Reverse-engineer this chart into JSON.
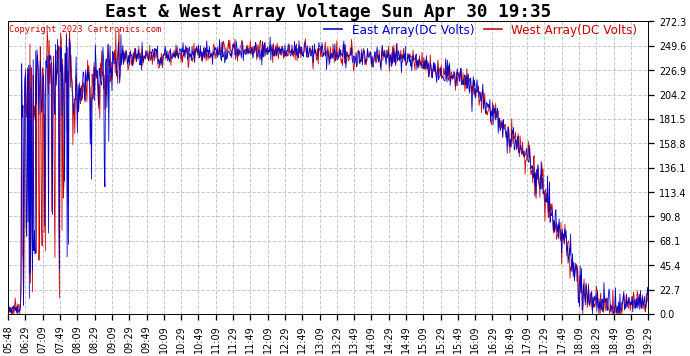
{
  "title": "East & West Array Voltage Sun Apr 30 19:35",
  "copyright": "Copyright 2023 Cartronics.com",
  "legend_east": "East Array(DC Volts)",
  "legend_west": "West Array(DC Volts)",
  "east_color": "#0000cc",
  "west_color": "#cc0000",
  "ylabel_values": [
    272.3,
    249.6,
    226.9,
    204.2,
    181.5,
    158.8,
    136.1,
    113.4,
    90.8,
    68.1,
    45.4,
    22.7,
    0.0
  ],
  "ymin": 0.0,
  "ymax": 272.3,
  "x_tick_labels": [
    "05:48",
    "06:29",
    "07:09",
    "07:49",
    "08:09",
    "08:29",
    "09:09",
    "09:29",
    "09:49",
    "10:09",
    "10:29",
    "10:49",
    "11:09",
    "11:29",
    "11:49",
    "12:09",
    "12:29",
    "12:49",
    "13:09",
    "13:29",
    "13:49",
    "14:09",
    "14:29",
    "14:49",
    "15:09",
    "15:29",
    "15:49",
    "16:09",
    "16:29",
    "16:49",
    "17:09",
    "17:29",
    "17:49",
    "18:09",
    "18:29",
    "18:49",
    "19:09",
    "19:29"
  ],
  "bg_color": "#ffffff",
  "grid_color": "#c8c8c8",
  "title_fontsize": 11,
  "tick_fontsize": 6,
  "legend_fontsize": 7.5
}
